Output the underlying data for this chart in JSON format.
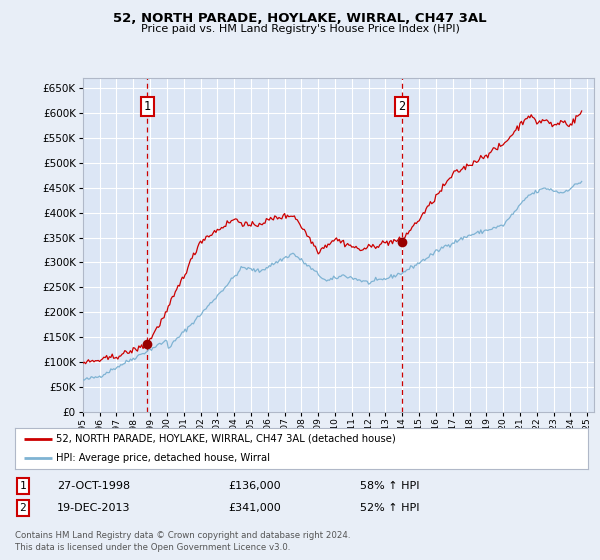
{
  "title": "52, NORTH PARADE, HOYLAKE, WIRRAL, CH47 3AL",
  "subtitle": "Price paid vs. HM Land Registry's House Price Index (HPI)",
  "background_color": "#e8eef7",
  "plot_bg_color": "#dce6f5",
  "grid_color": "#c8d4e8",
  "ylim": [
    0,
    670000
  ],
  "yticks": [
    0,
    50000,
    100000,
    150000,
    200000,
    250000,
    300000,
    350000,
    400000,
    450000,
    500000,
    550000,
    600000,
    650000
  ],
  "xlim_start": 1995.0,
  "xlim_end": 2025.4,
  "sale1_date": 1998.83,
  "sale1_price": 136000,
  "sale2_date": 2013.96,
  "sale2_price": 341000,
  "line1_color": "#cc0000",
  "line2_color": "#7fb3d3",
  "vline_color": "#cc0000",
  "marker_color": "#990000",
  "legend1": "52, NORTH PARADE, HOYLAKE, WIRRAL, CH47 3AL (detached house)",
  "legend2": "HPI: Average price, detached house, Wirral",
  "footnote": "Contains HM Land Registry data © Crown copyright and database right 2024.\nThis data is licensed under the Open Government Licence v3.0."
}
